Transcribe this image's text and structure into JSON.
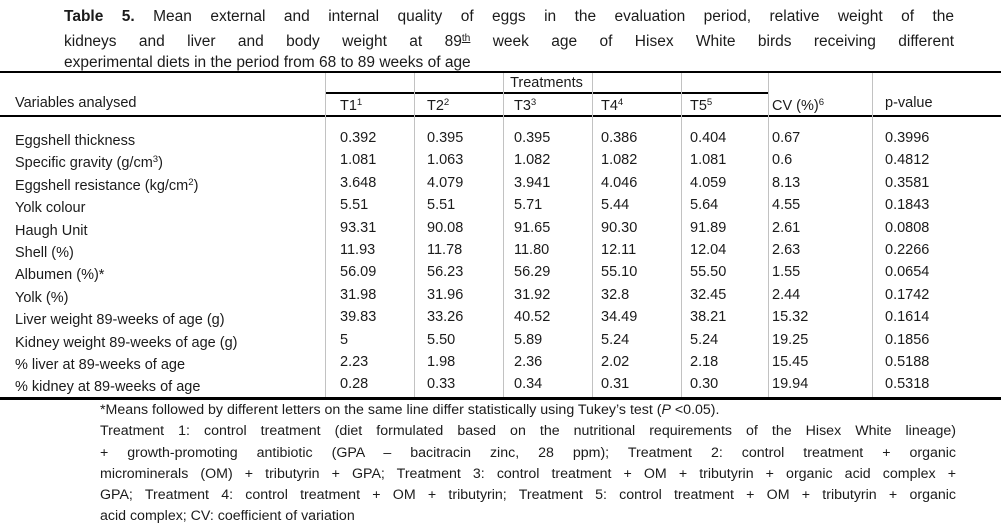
{
  "title": {
    "label_bold": "Table 5.",
    "line1_rest": " Mean external and internal quality of eggs in the evaluation period, relative weight of the",
    "line2_pre": "kidneys and liver and body weight at 89",
    "line2_sup": "th",
    "line2_post": " week age of Hisex White birds receiving different",
    "line3": "experimental diets in the period from 68 to 89 weeks of age"
  },
  "table": {
    "group_header": "Treatments",
    "row_header_label": "Variables analysed",
    "treatment_columns": [
      {
        "base": "T1",
        "sup": "1"
      },
      {
        "base": "T2",
        "sup": "2"
      },
      {
        "base": "T3",
        "sup": "3"
      },
      {
        "base": "T4",
        "sup": "4"
      },
      {
        "base": "T5",
        "sup": "5"
      }
    ],
    "cv_header": {
      "base": "CV (%)",
      "sup": "6"
    },
    "pvalue_header": "p-value",
    "rows": [
      {
        "label_pre": "Eggshell thickness",
        "label_sup": "",
        "label_post": "",
        "values": [
          "0.392",
          "0.395",
          "0.395",
          "0.386",
          "0.404",
          "0.67",
          "0.3996"
        ]
      },
      {
        "label_pre": "Specific gravity (g/cm",
        "label_sup": "3",
        "label_post": ")",
        "values": [
          "1.081",
          "1.063",
          "1.082",
          "1.082",
          "1.081",
          "0.6",
          "0.4812"
        ]
      },
      {
        "label_pre": "Eggshell resistance (kg/cm",
        "label_sup": "2",
        "label_post": ")",
        "values": [
          "3.648",
          "4.079",
          "3.941",
          "4.046",
          "4.059",
          "8.13",
          "0.3581"
        ]
      },
      {
        "label_pre": "Yolk colour",
        "label_sup": "",
        "label_post": "",
        "values": [
          "5.51",
          "5.51",
          "5.71",
          "5.44",
          "5.64",
          "4.55",
          "0.1843"
        ]
      },
      {
        "label_pre": "Haugh Unit",
        "label_sup": "",
        "label_post": "",
        "values": [
          "93.31",
          "90.08",
          "91.65",
          "90.30",
          "91.89",
          "2.61",
          "0.0808"
        ]
      },
      {
        "label_pre": "Shell (%)",
        "label_sup": "",
        "label_post": "",
        "values": [
          "11.93",
          "11.78",
          "11.80",
          "12.11",
          "12.04",
          "2.63",
          "0.2266"
        ]
      },
      {
        "label_pre": "Albumen (%)*",
        "label_sup": "",
        "label_post": "",
        "values": [
          "56.09",
          "56.23",
          "56.29",
          "55.10",
          "55.50",
          "1.55",
          "0.0654"
        ]
      },
      {
        "label_pre": "Yolk (%)",
        "label_sup": "",
        "label_post": "",
        "values": [
          "31.98",
          "31.96",
          "31.92",
          "32.8",
          "32.45",
          "2.44",
          "0.1742"
        ]
      },
      {
        "label_pre": "Liver weight 89-weeks of age (g)",
        "label_sup": "",
        "label_post": "",
        "values": [
          "39.83",
          "33.26",
          "40.52",
          "34.49",
          "38.21",
          "15.32",
          "0.1614"
        ]
      },
      {
        "label_pre": "Kidney weight 89-weeks of age (g)",
        "label_sup": "",
        "label_post": "",
        "values": [
          "5",
          "5.50",
          "5.89",
          "5.24",
          "5.24",
          "19.25",
          "0.1856"
        ]
      },
      {
        "label_pre": "% liver at 89-weeks of age",
        "label_sup": "",
        "label_post": "",
        "values": [
          "2.23",
          "1.98",
          "2.36",
          "2.02",
          "2.18",
          "15.45",
          "0.5188"
        ]
      },
      {
        "label_pre": "% kidney at 89-weeks of age",
        "label_sup": "",
        "label_post": "",
        "values": [
          "0.28",
          "0.33",
          "0.34",
          "0.31",
          "0.30",
          "19.94",
          "0.5318"
        ]
      }
    ]
  },
  "footnotes": {
    "line1_pre": "*Means followed by different letters on the same line differ statistically using Tukey’s test (",
    "line1_italic": "P",
    "line1_post": " <0.05).",
    "line2": "Treatment 1: control treatment (diet formulated based on the nutritional requirements of the Hisex White lineage)",
    "line3": "+ growth-promoting antibiotic (GPA – bacitracin zinc, 28 ppm); Treatment 2: control treatment + organic",
    "line4": "microminerals (OM) + tributyrin + GPA; Treatment 3: control treatment + OM + tributyrin + organic acid complex +",
    "line5": "GPA; Treatment 4: control treatment + OM + tributyrin; Treatment 5: control treatment + OM + tributyrin + organic",
    "line6": "acid complex; CV: coefficient of variation"
  },
  "colors": {
    "text": "#1b1b1b",
    "rule": "#000000",
    "column_separator": "#c2c2c2"
  }
}
